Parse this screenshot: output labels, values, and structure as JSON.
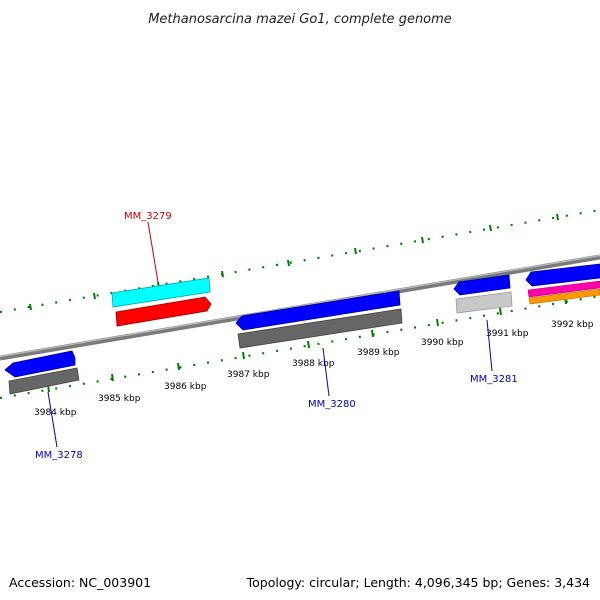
{
  "title": "Methanosarcina mazei Go1, complete genome",
  "footer": {
    "accession": "Accession: NC_003901",
    "summary": "Topology: circular; Length: 4,096,345 bp; Genes: 3,434"
  },
  "ruler_labels": [
    "3984 kbp",
    "3985 kbp",
    "3986 kbp",
    "3987 kbp",
    "3988 kbp",
    "3989 kbp",
    "3990 kbp",
    "3991 kbp",
    "3992 kbp"
  ],
  "gene_labels": [
    {
      "name": "MM_3278",
      "color": "#0000cc"
    },
    {
      "name": "MM_3279",
      "color": "#cc0000"
    },
    {
      "name": "MM_3280",
      "color": "#0000cc"
    },
    {
      "name": "MM_3281",
      "color": "#0000cc"
    }
  ],
  "colors": {
    "cds_forward": "#0000ff",
    "cds_forward_alt": "#ff0000",
    "gene_grey": "#666666",
    "cyan_feature": "#00ffff",
    "light_grey_feature": "#c8c8c8",
    "magenta_feature": "#ff00aa",
    "orange_feature": "#ff9900",
    "tick_green": "#008000",
    "backbone": "#888888"
  }
}
